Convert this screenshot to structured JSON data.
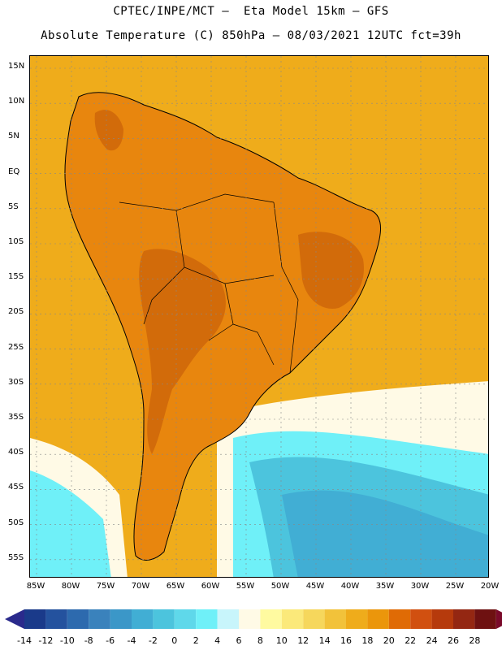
{
  "title_line1": "CPTEC/INPE/MCT –  Eta Model 15km – GFS",
  "title_line2": "Absolute Temperature (C) 850hPa – 08/03/2021 12UTC fct=39h",
  "lat_labels": [
    "15N",
    "10N",
    "5N",
    "EQ",
    "5S",
    "10S",
    "15S",
    "20S",
    "25S",
    "30S",
    "35S",
    "40S",
    "45S",
    "50S",
    "55S"
  ],
  "lon_labels": [
    "85W",
    "80W",
    "75W",
    "70W",
    "65W",
    "60W",
    "55W",
    "50W",
    "45W",
    "40W",
    "35W",
    "30W",
    "25W",
    "20W"
  ],
  "colorbar": {
    "tick_labels": [
      "-14",
      "-12",
      "-10",
      "-8",
      "-6",
      "-4",
      "-2",
      "0",
      "2",
      "4",
      "6",
      "8",
      "10",
      "12",
      "14",
      "16",
      "18",
      "20",
      "22",
      "24",
      "26",
      "28"
    ],
    "colors": [
      "#1a3a8a",
      "#24529e",
      "#2d6aae",
      "#3a82bc",
      "#3b97c8",
      "#41aed4",
      "#4cc4dd",
      "#5fd8ea",
      "#6ff0f8",
      "#c8f5fb",
      "#fffae6",
      "#fffaa0",
      "#fbe97a",
      "#f6d75c",
      "#f2c23a",
      "#efac1b",
      "#eb960b",
      "#e06b05",
      "#d15010",
      "#b63a0c",
      "#942712",
      "#6e1111"
    ],
    "left_end_color": "#2a2a8c",
    "right_end_color": "#7a0a2a"
  },
  "map": {
    "ocean_color": "#efac1b",
    "land_color": "#e8860e",
    "land_hot_color": "#d26b0a",
    "cold_colors": [
      "#fffae6",
      "#c8f5fb",
      "#6ff0f8",
      "#5fd8ea",
      "#4cc4dd",
      "#41aed4"
    ]
  }
}
